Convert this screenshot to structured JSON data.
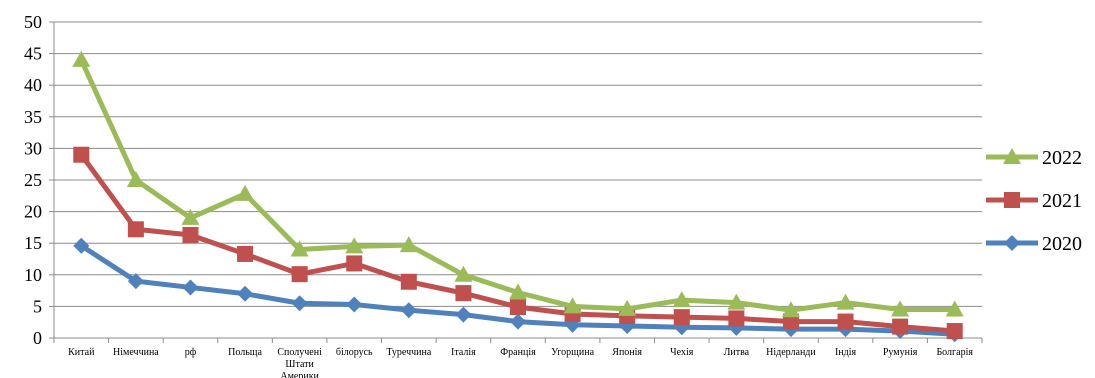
{
  "chart_data": {
    "type": "line",
    "title": "",
    "xlabel": "",
    "ylabel": "",
    "ylim": [
      0,
      50
    ],
    "yticks": [
      0,
      5,
      10,
      15,
      20,
      25,
      30,
      35,
      40,
      45,
      50
    ],
    "grid": "horizontal",
    "legend_position": "right",
    "categories": [
      "Китай",
      "Німеччина",
      "рф",
      "Польща",
      "Сполучені Штати Америки",
      "білорусь",
      "Туреччина",
      "Італія",
      "Франція",
      "Угорщина",
      "Японія",
      "Чехія",
      "Литва",
      "Нідерланди",
      "Індія",
      "Румунія",
      "Болгарія"
    ],
    "series": [
      {
        "name": "2022",
        "color": "#9bbb59",
        "marker": "triangle",
        "values": [
          44,
          25,
          19,
          22.8,
          14,
          14.5,
          14.7,
          10,
          7.2,
          5,
          4.6,
          6,
          5.6,
          4.4,
          5.6,
          4.5,
          4.5
        ]
      },
      {
        "name": "2021",
        "color": "#c0504d",
        "marker": "square",
        "values": [
          29,
          17.2,
          16.3,
          13.3,
          10.1,
          11.8,
          8.9,
          7.1,
          4.9,
          3.8,
          3.5,
          3.3,
          3.1,
          2.6,
          2.6,
          1.8,
          1.1
        ]
      },
      {
        "name": "2020",
        "color": "#4f81bd",
        "marker": "diamond",
        "values": [
          14.6,
          9,
          8,
          7,
          5.5,
          5.3,
          4.4,
          3.7,
          2.6,
          2.1,
          1.9,
          1.7,
          1.6,
          1.4,
          1.4,
          1.1,
          0.6
        ]
      }
    ]
  }
}
